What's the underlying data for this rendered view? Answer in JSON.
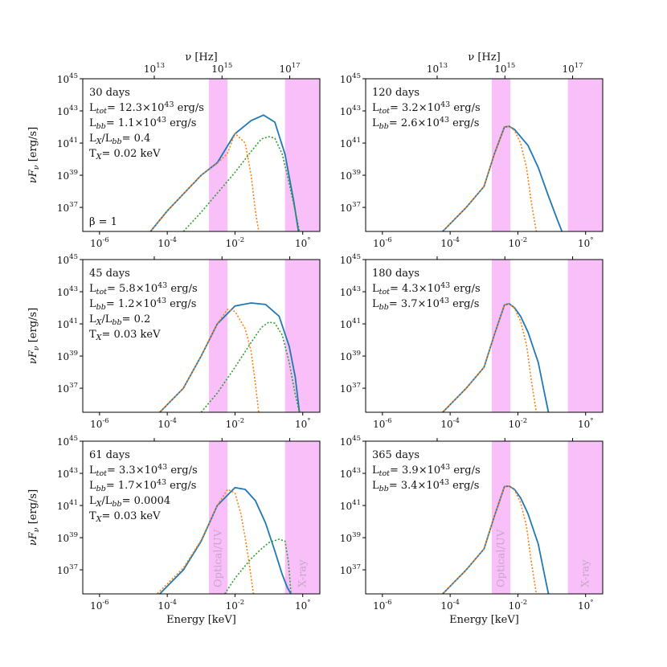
{
  "chart_data": {
    "type": "line",
    "x_axis": {
      "label": "Energy [keV]",
      "scale": "log",
      "range": [
        3.2e-07,
        3.2
      ],
      "ticks": [
        1e-06,
        0.0001,
        0.01,
        1
      ],
      "tick_labels": [
        "10−6",
        "10−4",
        "10−2",
        "10°"
      ]
    },
    "x_axis_top": {
      "label": "ν [Hz]",
      "scale": "log",
      "ticks": [
        10000000000000.0,
        1000000000000000.0,
        1e+17
      ],
      "tick_labels": [
        "10¹³",
        "10¹⁵",
        "10¹⁷"
      ]
    },
    "y_axis": {
      "label": "νFν [erg/s]",
      "scale": "log",
      "range": [
        3.2e+35,
        1e+45
      ],
      "ticks": [
        1e+37,
        1e+39,
        1e+41,
        1e+43,
        1e+45
      ],
      "tick_labels": [
        "10³⁷",
        "10³⁹",
        "10⁴¹",
        "10⁴³",
        "10⁴⁵"
      ]
    },
    "bands": [
      {
        "name": "Optical/UV",
        "x_range": [
          0.0017,
          0.006
        ],
        "color": "#f7b8f7"
      },
      {
        "name": "X-ray",
        "x_range": [
          0.3,
          3.2
        ],
        "color": "#f7b8f7"
      }
    ],
    "series_styles": [
      {
        "id": "total",
        "color": "#1f77b4",
        "dash": "solid"
      },
      {
        "id": "blackbody",
        "color": "#ff7f0e",
        "dash": "dotted"
      },
      {
        "id": "xray",
        "color": "#2ca02c",
        "dash": "dotted"
      }
    ],
    "panels": [
      {
        "annotations": [
          "30 days",
          "L_tot= 12.3×10⁴³ erg/s",
          "L_bb= 1.1×10⁴³ erg/s",
          "L_X/L_bb= 0.4",
          "T_X= 0.02 keV"
        ],
        "extra_label": "β = 1",
        "series": [
          {
            "id": "total",
            "x": [
              1e-06,
              3.2e-05,
              0.0001,
              0.001,
              0.003,
              0.01,
              0.03,
              0.07,
              0.15,
              0.3,
              0.55,
              0.75
            ],
            "y": [
              1e+32,
              3.2e+35,
              6e+36,
              1e+39,
              6e+39,
              3.8e+41,
              2.5e+42,
              5.5e+42,
              2e+42,
              2e+40,
              2e+37,
              3.2e+35
            ]
          },
          {
            "id": "blackbody",
            "x": [
              1e-06,
              3.2e-05,
              0.0001,
              0.001,
              0.003,
              0.006,
              0.01,
              0.02,
              0.03,
              0.04,
              0.05
            ],
            "y": [
              1e+32,
              3.2e+35,
              6e+36,
              1e+39,
              5.5e+39,
              2.3e+40,
              4e+41,
              1e+41,
              1e+39,
              6e+36,
              3.2e+35
            ]
          },
          {
            "id": "xray",
            "x": [
              0.0003,
              0.001,
              0.01,
              0.03,
              0.06,
              0.1,
              0.15,
              0.25,
              0.4,
              0.6,
              0.8
            ],
            "y": [
              3.2e+35,
              5e+36,
              1.5e+39,
              3e+40,
              1.8e+41,
              2.5e+41,
              2e+41,
              2e+40,
              3e+38,
              6e+36,
              3.2e+35
            ]
          }
        ]
      },
      {
        "annotations": [
          "120 days",
          "L_tot= 3.2×10⁴³ erg/s",
          "L_bb= 2.6×10⁴³ erg/s"
        ],
        "series": [
          {
            "id": "total",
            "x": [
              1e-06,
              6e-05,
              0.0003,
              0.001,
              0.002,
              0.004,
              0.0055,
              0.008,
              0.012,
              0.02,
              0.04,
              0.08,
              0.15,
              0.2
            ],
            "y": [
              1e+32,
              3.2e+35,
              1e+37,
              2e+38,
              2e+40,
              1e+42,
              1.1e+42,
              7e+41,
              2.5e+41,
              7e+40,
              3e+39,
              5e+37,
              1.5e+36,
              3.2e+35
            ]
          },
          {
            "id": "blackbody",
            "x": [
              1e-06,
              6e-05,
              0.0003,
              0.001,
              0.002,
              0.004,
              0.0055,
              0.008,
              0.012,
              0.018,
              0.025,
              0.035
            ],
            "y": [
              1e+32,
              3.2e+35,
              1e+37,
              2e+38,
              2e+40,
              1e+42,
              1.1e+42,
              6e+41,
              1e+41,
              3e+39,
              2e+37,
              3.2e+35
            ]
          }
        ]
      },
      {
        "annotations": [
          "45 days",
          "L_tot= 5.8×10⁴³ erg/s",
          "L_bb= 1.2×10⁴³ erg/s",
          "L_X/L_bb= 0.2",
          "T_X= 0.03 keV"
        ],
        "series": [
          {
            "id": "total",
            "x": [
              1e-06,
              6e-05,
              0.0003,
              0.001,
              0.003,
              0.01,
              0.03,
              0.08,
              0.2,
              0.4,
              0.6,
              0.8
            ],
            "y": [
              1e+32,
              3.2e+35,
              1e+37,
              1e+39,
              1e+41,
              1.3e+42,
              2e+42,
              1.6e+42,
              3e+41,
              4e+39,
              5e+37,
              3.2e+35
            ]
          },
          {
            "id": "blackbody",
            "x": [
              1e-06,
              6e-05,
              0.0003,
              0.001,
              0.003,
              0.006,
              0.01,
              0.02,
              0.03,
              0.04,
              0.05
            ],
            "y": [
              1e+32,
              3.2e+35,
              1e+37,
              1e+39,
              1e+41,
              8e+41,
              6e+41,
              5e+40,
              2e+39,
              2e+37,
              3.2e+35
            ]
          },
          {
            "id": "xray",
            "x": [
              0.001,
              0.003,
              0.01,
              0.03,
              0.06,
              0.1,
              0.15,
              0.25,
              0.4,
              0.6,
              0.8
            ],
            "y": [
              3.2e+35,
              5e+36,
              2e+38,
              7e+39,
              6e+40,
              1.3e+41,
              1.1e+41,
              2e+40,
              4e+38,
              4e+36,
              3.2e+35
            ]
          }
        ]
      },
      {
        "annotations": [
          "180 days",
          "L_tot= 4.3×10⁴³ erg/s",
          "L_bb= 3.7×10⁴³ erg/s"
        ],
        "series": [
          {
            "id": "total",
            "x": [
              1e-06,
              6e-05,
              0.0003,
              0.001,
              0.002,
              0.004,
              0.0055,
              0.008,
              0.012,
              0.02,
              0.04,
              0.06,
              0.08
            ],
            "y": [
              1e+32,
              3.2e+35,
              1e+37,
              2e+38,
              2e+40,
              1.5e+42,
              1.8e+42,
              1e+42,
              3e+41,
              3e+40,
              4e+38,
              6e+36,
              3.2e+35
            ]
          },
          {
            "id": "blackbody",
            "x": [
              1e-06,
              6e-05,
              0.0003,
              0.001,
              0.002,
              0.004,
              0.0055,
              0.008,
              0.012,
              0.018,
              0.025,
              0.035
            ],
            "y": [
              1e+32,
              3.2e+35,
              1e+37,
              2e+38,
              2e+40,
              1.5e+42,
              1.8e+42,
              9e+41,
              1.5e+41,
              5e+39,
              3e+37,
              3.2e+35
            ]
          }
        ]
      },
      {
        "annotations": [
          "61 days",
          "L_tot= 3.3×10⁴³ erg/s",
          "L_bb= 1.7×10⁴³ erg/s",
          "L_X/L_bb= 0.0004",
          "T_X= 0.03 keV"
        ],
        "series": [
          {
            "id": "total",
            "x": [
              1e-06,
              6e-05,
              0.0003,
              0.001,
              0.003,
              0.01,
              0.02,
              0.04,
              0.08,
              0.15,
              0.25,
              0.35,
              0.45
            ],
            "y": [
              1e+32,
              3.2e+35,
              1e+37,
              6e+38,
              1e+41,
              1.3e+42,
              1e+42,
              2e+41,
              8e+39,
              1.5e+38,
              5e+36,
              8e+35,
              3.2e+35
            ]
          },
          {
            "id": "blackbody",
            "x": [
              1e-06,
              5e-05,
              0.0003,
              0.001,
              0.003,
              0.006,
              0.01,
              0.015,
              0.02,
              0.025,
              0.035
            ],
            "y": [
              1e+32,
              3.2e+35,
              1.3e+37,
              7e+38,
              1e+41,
              1e+42,
              6e+41,
              3e+40,
              1e+39,
              5e+37,
              3.2e+35
            ]
          },
          {
            "id": "xray",
            "x": [
              0.005,
              0.01,
              0.03,
              0.06,
              0.1,
              0.2,
              0.3,
              0.38,
              0.45
            ],
            "y": [
              3.2e+35,
              3e+36,
              5e+37,
              2e+38,
              5e+38,
              8e+38,
              6e+38,
              3e+37,
              3.2e+35
            ]
          }
        ]
      },
      {
        "annotations": [
          "365 days",
          "L_tot= 3.9×10⁴³ erg/s",
          "L_bb= 3.4×10⁴³ erg/s"
        ],
        "series": [
          {
            "id": "total",
            "x": [
              1e-06,
              6e-05,
              0.0003,
              0.001,
              0.002,
              0.004,
              0.0055,
              0.008,
              0.012,
              0.02,
              0.04,
              0.06,
              0.08
            ],
            "y": [
              1e+32,
              3.2e+35,
              1e+37,
              2e+38,
              2e+40,
              1.5e+42,
              1.6e+42,
              1e+42,
              3e+41,
              3e+40,
              4e+38,
              6e+36,
              3.2e+35
            ]
          },
          {
            "id": "blackbody",
            "x": [
              1e-06,
              6e-05,
              0.0003,
              0.001,
              0.002,
              0.004,
              0.0055,
              0.008,
              0.012,
              0.018,
              0.025,
              0.035
            ],
            "y": [
              1e+32,
              3.2e+35,
              1e+37,
              2e+38,
              2e+40,
              1.5e+42,
              1.6e+42,
              9e+41,
              1.5e+41,
              5e+39,
              3e+37,
              3.2e+35
            ]
          }
        ]
      }
    ]
  }
}
